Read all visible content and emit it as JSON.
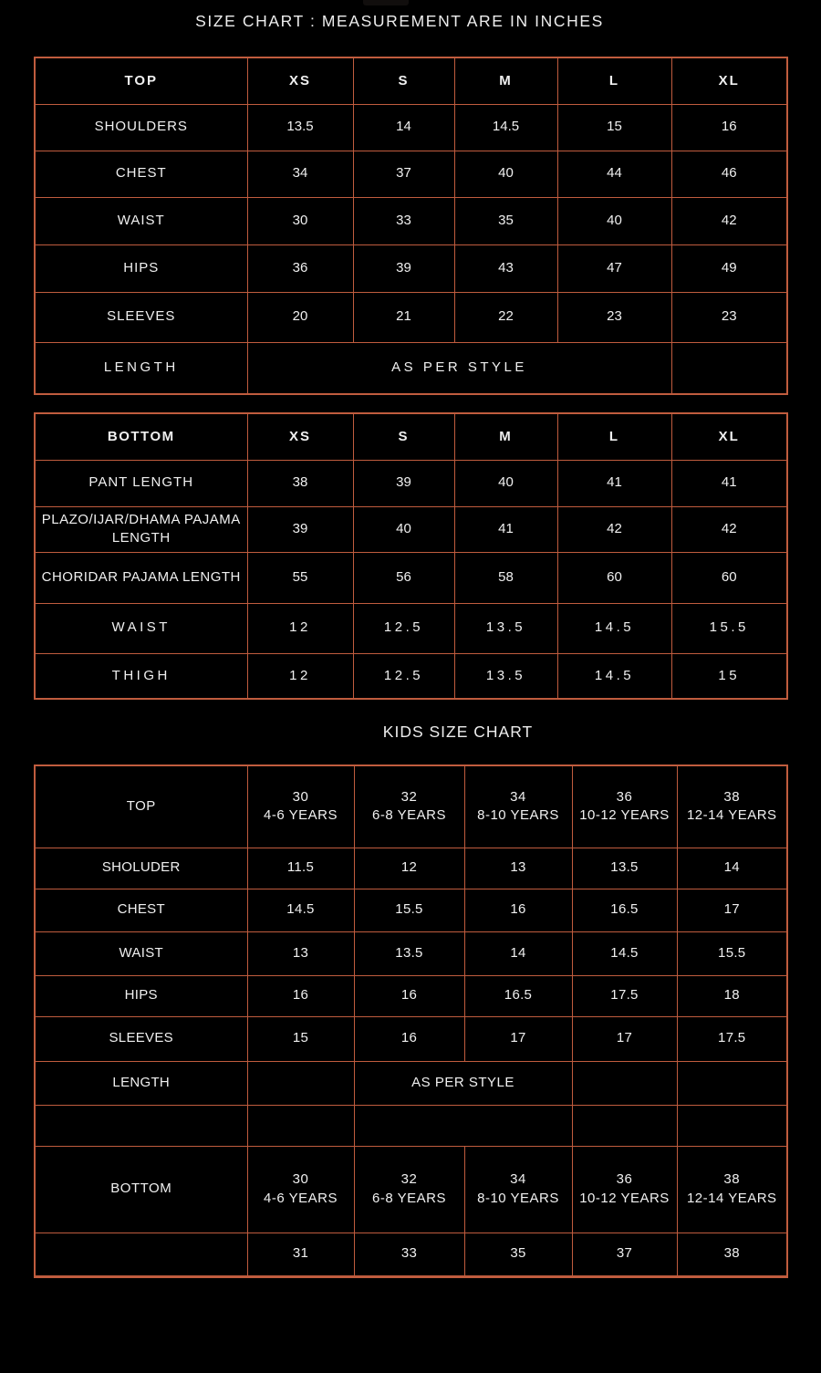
{
  "page": {
    "title": "SIZE CHART : MEASUREMENT ARE IN INCHES",
    "kids_title": "KIDS SIZE CHART"
  },
  "colors": {
    "background": "#000000",
    "border": "#C05C3E",
    "accent_text": "#DF6F4A",
    "text": "#F0F0F0"
  },
  "top_table": {
    "header": [
      "TOP",
      "XS",
      "S",
      "M",
      "L",
      "XL"
    ],
    "rows": [
      [
        "SHOULDERS",
        "13.5",
        "14",
        "14.5",
        "15",
        "16"
      ],
      [
        "CHEST",
        "34",
        "37",
        "40",
        "44",
        "46"
      ],
      [
        "WAIST",
        "30",
        "33",
        "35",
        "40",
        "42"
      ],
      [
        "HIPS",
        "36",
        "39",
        "43",
        "47",
        "49"
      ],
      [
        "SLEEVES",
        "20",
        "21",
        "22",
        "23",
        "23"
      ],
      [
        "LENGTH",
        "AS PER STYLE",
        ""
      ]
    ]
  },
  "bottom_table": {
    "header": [
      "BOTTOM",
      "XS",
      "S",
      "M",
      "L",
      "XL"
    ],
    "rows": [
      [
        "PANT LENGTH",
        "38",
        "39",
        "40",
        "41",
        "41"
      ],
      [
        "PLAZO/IJAR/DHAMA PAJAMA LENGTH",
        "39",
        "40",
        "41",
        "42",
        "42"
      ],
      [
        "CHORIDAR PAJAMA LENGTH",
        "55",
        "56",
        "58",
        "60",
        "60"
      ],
      [
        "WAIST",
        "12",
        "12.5",
        "13.5",
        "14.5",
        "15.5"
      ],
      [
        "THIGH",
        "12",
        "12.5",
        "13.5",
        "14.5",
        "15"
      ]
    ]
  },
  "kids_table": {
    "header": [
      "TOP",
      "30\n4-6 YEARS",
      "32\n6-8 YEARS",
      "34\n8-10 YEARS",
      "36\n10-12 YEARS",
      "38\n12-14 YEARS"
    ],
    "rows": [
      [
        "SHOLUDER",
        "11.5",
        "12",
        "13",
        "13.5",
        "14"
      ],
      [
        "CHEST",
        "14.5",
        "15.5",
        "16",
        "16.5",
        "17"
      ],
      [
        "WAIST",
        "13",
        "13.5",
        "14",
        "14.5",
        "15.5"
      ],
      [
        "HIPS",
        "16",
        "16",
        "16.5",
        "17.5",
        "18"
      ],
      [
        "SLEEVES",
        "15",
        "16",
        "17",
        "17",
        "17.5"
      ],
      [
        "LENGTH",
        "",
        "AS PER STYLE",
        "",
        ""
      ],
      [
        "",
        "",
        "",
        "",
        ""
      ],
      [
        "BOTTOM",
        "30\n4-6 YEARS",
        "32\n6-8 YEARS",
        "34\n8-10 YEARS",
        "36\n10-12 YEARS",
        "38\n12-14 YEARS"
      ],
      [
        "",
        "31",
        "33",
        "35",
        "37",
        "38"
      ]
    ]
  }
}
